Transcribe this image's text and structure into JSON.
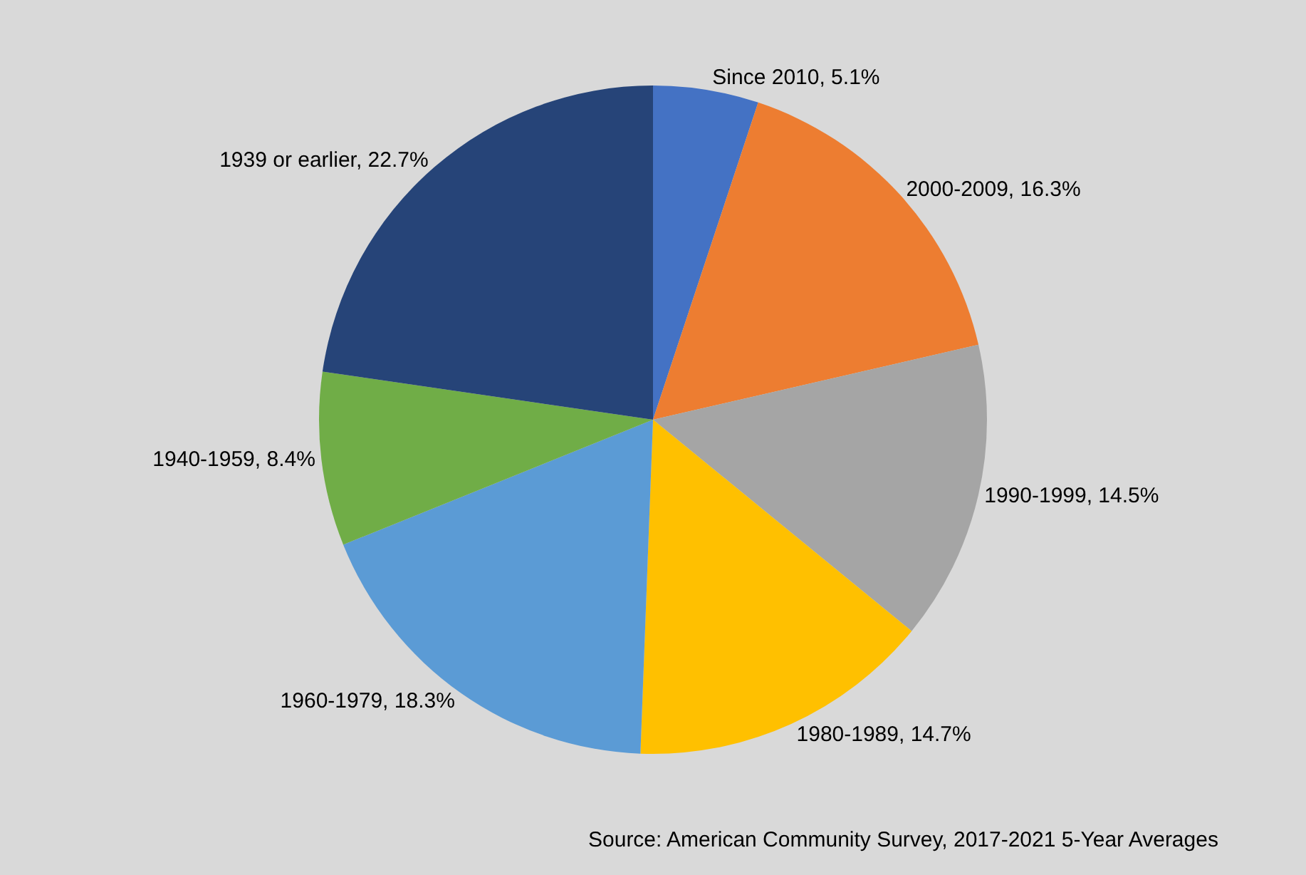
{
  "chart_data": {
    "type": "pie",
    "categories": [
      "Since 2010",
      "2000-2009",
      "1990-1999",
      "1980-1989",
      "1960-1979",
      "1940-1959",
      "1939 or earlier"
    ],
    "values": [
      5.1,
      16.3,
      14.5,
      14.7,
      18.3,
      8.4,
      22.7
    ],
    "value_labels": [
      "5.1%",
      "16.3%",
      "14.5%",
      "14.7%",
      "18.3%",
      "8.4%",
      "22.7%"
    ],
    "colors": [
      "#4472c4",
      "#ed7d31",
      "#a5a5a5",
      "#ffc000",
      "#5b9bd5",
      "#70ad47",
      "#264478"
    ],
    "legend": false,
    "annotations": [
      "Source: American Community Survey, 2017-2021 5-Year Averages"
    ]
  }
}
